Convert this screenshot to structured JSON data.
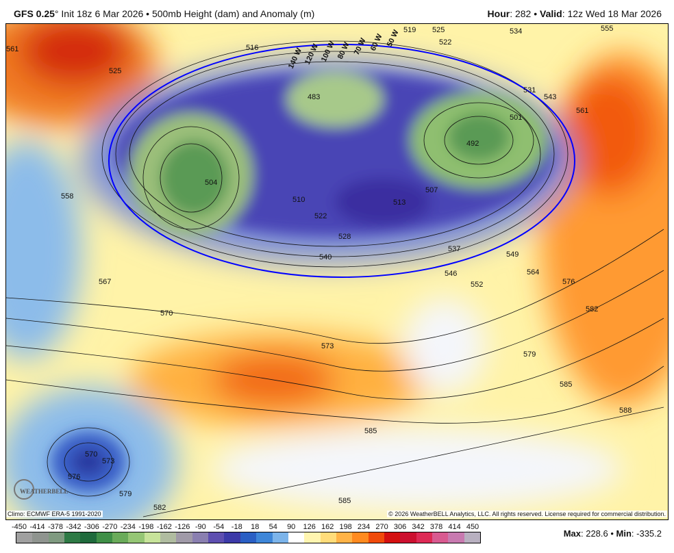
{
  "header": {
    "model": "GFS 0.25",
    "degree": "°",
    "run": " Init 18z 6 Mar 2026 • 500mb Height (dam) and Anomaly (m)",
    "hour_label": "Hour",
    "hour_value": ": 282 • ",
    "valid_label": "Valid",
    "valid_value": ": 12z Wed 18 Mar 2026"
  },
  "map": {
    "contour_labels": [
      "561",
      "525",
      "516",
      "519",
      "525",
      "522",
      "534",
      "555",
      "531",
      "543",
      "561",
      "558",
      "504",
      "492",
      "501",
      "483",
      "507",
      "513",
      "510",
      "522",
      "528",
      "540",
      "537",
      "549",
      "546",
      "552",
      "564",
      "576",
      "582",
      "567",
      "570",
      "573",
      "579",
      "585",
      "588",
      "585",
      "570",
      "573",
      "576",
      "579",
      "582",
      "585",
      "140 W",
      "120 W",
      "100 W",
      "80 W",
      "70 W",
      "60 W",
      "50 W"
    ],
    "climo_contour_color": "#0000ff",
    "logo_text": "WEATHERBELL"
  },
  "footer": {
    "climo": "Climo: ECMWF ERA-5 1991-2020",
    "copyright": "© 2026 WeatherBELL Analytics, LLC. All rights reserved. License required for commercial distribution.",
    "max_label": "Max",
    "max_value": ": 228.6 • ",
    "min_label": "Min",
    "min_value": ": -335.2"
  },
  "colorbar": {
    "ticks": [
      "-450",
      "-414",
      "-378",
      "-342",
      "-306",
      "-270",
      "-234",
      "-198",
      "-162",
      "-126",
      "-90",
      "-54",
      "-18",
      "18",
      "54",
      "90",
      "126",
      "162",
      "198",
      "234",
      "270",
      "306",
      "342",
      "378",
      "414",
      "450"
    ],
    "colors": [
      "#a0a0a0",
      "#8f948f",
      "#7f9a80",
      "#2e7a45",
      "#1f6a3c",
      "#3f8f47",
      "#6aab5a",
      "#95c675",
      "#c7e39a",
      "#b0bca0",
      "#a09aa8",
      "#8a7fb0",
      "#5e4fb0",
      "#3c3aa8",
      "#2a5fc4",
      "#3e86d8",
      "#7cb4ea",
      "#ffffff",
      "#fff5b0",
      "#ffdc7a",
      "#ffb347",
      "#ff8a1f",
      "#f04a0a",
      "#d41010",
      "#cc1030",
      "#dd2a55",
      "#d85a90",
      "#c87ab0",
      "#b8b0c0"
    ]
  }
}
